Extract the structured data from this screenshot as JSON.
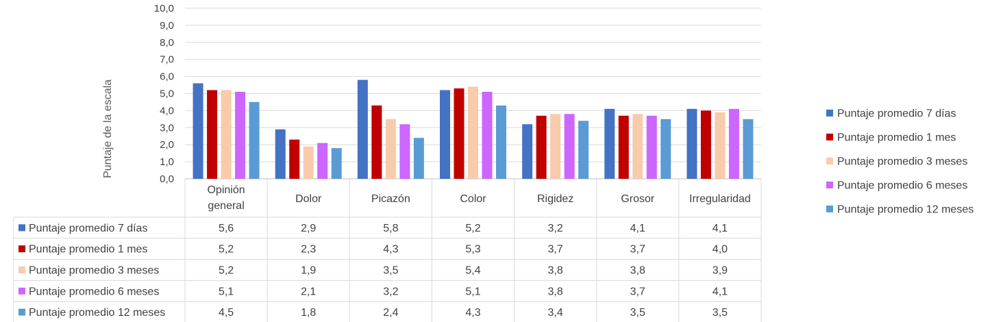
{
  "chart_data": {
    "type": "bar",
    "ylabel": "Puntaje de la escala",
    "ylim": [
      0,
      10
    ],
    "yticks": [
      "0,0",
      "1,0",
      "2,0",
      "3,0",
      "4,0",
      "5,0",
      "6,0",
      "7,0",
      "8,0",
      "9,0",
      "10,0"
    ],
    "grid": true,
    "legend_position": "right",
    "categories": [
      [
        "Opinión",
        "general"
      ],
      [
        "Dolor"
      ],
      [
        "Picazón"
      ],
      [
        "Color"
      ],
      [
        "Rigidez"
      ],
      [
        "Grosor"
      ],
      [
        "Irregularidad"
      ]
    ],
    "series": [
      {
        "name": "Puntaje promedio 7 días",
        "color": "#4472C4",
        "values": [
          5.6,
          2.9,
          5.8,
          5.2,
          3.2,
          4.1,
          4.1
        ],
        "labels": [
          "5,6",
          "2,9",
          "5,8",
          "5,2",
          "3,2",
          "4,1",
          "4,1"
        ]
      },
      {
        "name": "Puntaje promedio 1 mes",
        "color": "#C00000",
        "values": [
          5.2,
          2.3,
          4.3,
          5.3,
          3.7,
          3.7,
          4.0
        ],
        "labels": [
          "5,2",
          "2,3",
          "4,3",
          "5,3",
          "3,7",
          "3,7",
          "4,0"
        ]
      },
      {
        "name": "Puntaje promedio 3 meses",
        "color": "#F8CBAD",
        "values": [
          5.2,
          1.9,
          3.5,
          5.4,
          3.8,
          3.8,
          3.9
        ],
        "labels": [
          "5,2",
          "1,9",
          "3,5",
          "5,4",
          "3,8",
          "3,8",
          "3,9"
        ]
      },
      {
        "name": "Puntaje promedio 6 meses",
        "color": "#CC66FF",
        "values": [
          5.1,
          2.1,
          3.2,
          5.1,
          3.8,
          3.7,
          4.1
        ],
        "labels": [
          "5,1",
          "2,1",
          "3,2",
          "5,1",
          "3,8",
          "3,7",
          "4,1"
        ]
      },
      {
        "name": "Puntaje promedio 12 meses",
        "color": "#5B9BD5",
        "values": [
          4.5,
          1.8,
          2.4,
          4.3,
          3.4,
          3.5,
          3.5
        ],
        "labels": [
          "4,5",
          "1,8",
          "2,4",
          "4,3",
          "3,4",
          "3,5",
          "3,5"
        ]
      }
    ]
  }
}
